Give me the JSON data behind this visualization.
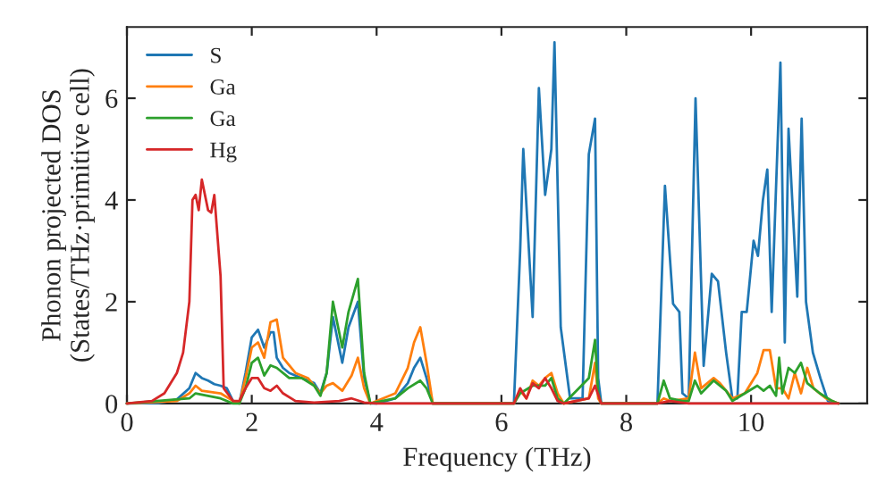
{
  "chart_data": {
    "type": "line",
    "xlabel": "Frequency (THz)",
    "ylabel": "Phonon projected DOS\n(States/THz·primitive cell)",
    "xlim": [
      0,
      11.86
    ],
    "ylim": [
      0,
      7.4
    ],
    "xticks": [
      0,
      2,
      4,
      6,
      8,
      10
    ],
    "yticks": [
      0,
      2,
      4,
      6
    ],
    "grid": false,
    "legend": "top left",
    "line_style": "solid",
    "marker": "none",
    "series": [
      {
        "name": "S",
        "color": "#1f77b4",
        "x": [
          0,
          0.5,
          0.8,
          1.0,
          1.1,
          1.2,
          1.3,
          1.4,
          1.5,
          1.6,
          1.7,
          1.8,
          1.9,
          2.0,
          2.1,
          2.2,
          2.3,
          2.35,
          2.4,
          2.5,
          2.6,
          2.8,
          3.0,
          3.1,
          3.2,
          3.3,
          3.45,
          3.55,
          3.7,
          3.8,
          3.9,
          4.0,
          4.3,
          4.5,
          4.6,
          4.7,
          4.8,
          4.9,
          6.2,
          6.3,
          6.35,
          6.5,
          6.6,
          6.7,
          6.8,
          6.85,
          6.95,
          7.1,
          7.3,
          7.4,
          7.5,
          7.55,
          7.6,
          8.5,
          8.62,
          8.75,
          8.85,
          8.9,
          9.0,
          9.11,
          9.24,
          9.37,
          9.47,
          9.6,
          9.7,
          9.78,
          9.85,
          9.93,
          10.04,
          10.11,
          10.19,
          10.26,
          10.33,
          10.47,
          10.54,
          10.6,
          10.74,
          10.81,
          10.88,
          10.99,
          11.11,
          11.23,
          11.4
        ],
        "values": [
          0,
          0.01,
          0.08,
          0.3,
          0.6,
          0.5,
          0.45,
          0.38,
          0.35,
          0.3,
          0.05,
          0,
          0.6,
          1.3,
          1.45,
          1.1,
          1.4,
          1.4,
          0.9,
          0.7,
          0.6,
          0.5,
          0.4,
          0.2,
          0.6,
          1.7,
          0.8,
          1.5,
          2.0,
          0.5,
          0,
          0,
          0.1,
          0.4,
          0.7,
          0.9,
          0.5,
          0,
          0,
          3.0,
          5.0,
          1.7,
          6.2,
          4.1,
          5.0,
          7.1,
          1.5,
          0.1,
          0.1,
          4.9,
          5.6,
          0.5,
          0,
          0,
          4.28,
          1.96,
          1.8,
          0.2,
          0.1,
          6.0,
          0.74,
          2.55,
          2.4,
          1.0,
          0.1,
          0.1,
          1.8,
          1.8,
          3.2,
          2.9,
          4.0,
          4.6,
          1.8,
          6.7,
          1.2,
          5.4,
          2.1,
          5.6,
          2.0,
          1.0,
          0.5,
          0.05,
          0
        ]
      },
      {
        "name": "Ga",
        "color": "#ff7f0e",
        "x": [
          0,
          0.8,
          1.0,
          1.1,
          1.2,
          1.5,
          1.7,
          1.8,
          1.9,
          2.0,
          2.1,
          2.2,
          2.3,
          2.4,
          2.5,
          2.7,
          2.9,
          3.1,
          3.2,
          3.3,
          3.45,
          3.6,
          3.7,
          3.8,
          3.9,
          4.3,
          4.5,
          4.6,
          4.7,
          4.8,
          4.9,
          6.2,
          6.3,
          6.4,
          6.5,
          6.6,
          6.7,
          6.8,
          6.9,
          7.0,
          7.4,
          7.5,
          7.55,
          7.6,
          8.5,
          8.6,
          8.7,
          9.0,
          9.1,
          9.2,
          9.4,
          9.5,
          9.7,
          9.9,
          10.1,
          10.2,
          10.3,
          10.4,
          10.5,
          10.6,
          10.7,
          10.8,
          10.9,
          11.0,
          11.2,
          11.4
        ],
        "values": [
          0,
          0.05,
          0.2,
          0.35,
          0.25,
          0.2,
          0.05,
          0,
          0.5,
          1.1,
          1.2,
          0.9,
          1.6,
          1.65,
          0.9,
          0.6,
          0.5,
          0.2,
          0.35,
          0.4,
          0.25,
          0.55,
          0.9,
          0.3,
          0,
          0.2,
          0.7,
          1.2,
          1.5,
          0.8,
          0,
          0,
          0.25,
          0.1,
          0.45,
          0.35,
          0.5,
          0.6,
          0.2,
          0,
          0.1,
          0.8,
          0.1,
          0,
          0,
          0.1,
          0.05,
          0.1,
          1.0,
          0.3,
          0.5,
          0.4,
          0.1,
          0.2,
          0.6,
          1.05,
          1.05,
          0.3,
          0.3,
          0.1,
          0.6,
          0.2,
          0.7,
          0.3,
          0.1,
          0
        ]
      },
      {
        "name": "Ga",
        "color": "#2ca02c",
        "x": [
          0,
          1.0,
          1.1,
          1.5,
          1.7,
          1.8,
          1.9,
          2.0,
          2.1,
          2.2,
          2.3,
          2.4,
          2.6,
          2.8,
          3.0,
          3.1,
          3.2,
          3.3,
          3.45,
          3.55,
          3.7,
          3.8,
          3.9,
          4.3,
          4.5,
          4.7,
          4.8,
          4.9,
          6.2,
          6.3,
          6.5,
          6.7,
          6.8,
          6.9,
          7.0,
          7.4,
          7.5,
          7.55,
          7.6,
          8.5,
          8.6,
          8.7,
          8.9,
          9.0,
          9.1,
          9.2,
          9.4,
          9.6,
          9.7,
          9.9,
          10.1,
          10.2,
          10.3,
          10.4,
          10.45,
          10.5,
          10.6,
          10.7,
          10.8,
          10.9,
          11.1,
          11.3,
          11.4
        ],
        "values": [
          0,
          0.1,
          0.2,
          0.1,
          0,
          0,
          0.3,
          0.8,
          0.9,
          0.55,
          0.75,
          0.7,
          0.5,
          0.5,
          0.35,
          0.15,
          0.6,
          2.0,
          1.1,
          1.8,
          2.45,
          0.6,
          0,
          0.1,
          0.3,
          0.45,
          0.3,
          0,
          0,
          0.2,
          0.35,
          0.35,
          0.5,
          0.1,
          0,
          0.5,
          1.25,
          0.2,
          0,
          0,
          0.45,
          0.1,
          0.05,
          0.05,
          0.45,
          0.2,
          0.45,
          0.25,
          0.05,
          0.2,
          0.35,
          0.25,
          0.35,
          0.15,
          0.9,
          0.2,
          0.7,
          0.6,
          0.8,
          0.4,
          0.2,
          0.05,
          0
        ]
      },
      {
        "name": "Hg",
        "color": "#d62728",
        "x": [
          0,
          0.4,
          0.6,
          0.8,
          0.9,
          1.0,
          1.05,
          1.1,
          1.15,
          1.2,
          1.3,
          1.35,
          1.4,
          1.5,
          1.55,
          1.7,
          1.8,
          1.9,
          2.0,
          2.1,
          2.2,
          2.3,
          2.4,
          2.5,
          2.7,
          3.0,
          3.4,
          3.6,
          3.8,
          4.0,
          6.2,
          6.3,
          6.4,
          6.5,
          6.6,
          6.7,
          6.8,
          6.9,
          7.0,
          7.4,
          7.5,
          7.6,
          8.5,
          8.7,
          9.0,
          11.4
        ],
        "values": [
          0,
          0.05,
          0.2,
          0.6,
          1.0,
          2.0,
          4.0,
          4.1,
          3.8,
          4.4,
          3.8,
          3.75,
          4.1,
          2.5,
          0.3,
          0.05,
          0.05,
          0.3,
          0.5,
          0.5,
          0.3,
          0.25,
          0.35,
          0.2,
          0.05,
          0.02,
          0.05,
          0.1,
          0.02,
          0,
          0,
          0.3,
          0.1,
          0.4,
          0.3,
          0.5,
          0.3,
          0.05,
          0,
          0.1,
          0.35,
          0,
          0,
          0.05,
          0,
          0
        ]
      }
    ]
  }
}
